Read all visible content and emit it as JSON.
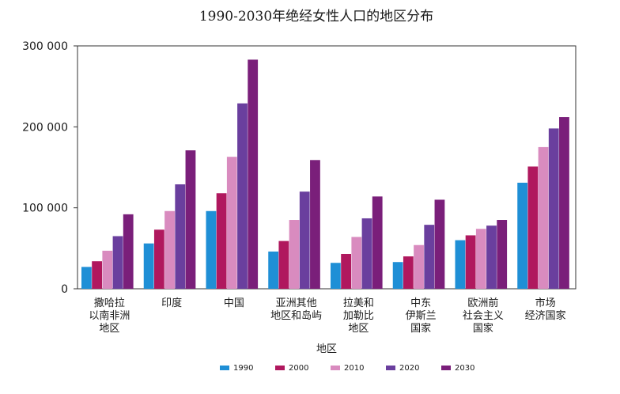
{
  "chart_data": {
    "type": "bar",
    "title": "1990-2030年绝经女性人口的地区分布",
    "xlabel": "地区",
    "ylabel": "",
    "ylim": [
      0,
      300000
    ],
    "yticks": [
      {
        "value": 0,
        "label": "0"
      },
      {
        "value": 100000,
        "label": "100 000"
      },
      {
        "value": 200000,
        "label": "200 000"
      },
      {
        "value": 300000,
        "label": "300 000"
      }
    ],
    "categories": [
      [
        "撒哈拉",
        "以南非洲",
        "地区"
      ],
      [
        "印度"
      ],
      [
        "中国"
      ],
      [
        "亚洲其他",
        "地区和岛屿"
      ],
      [
        "拉美和",
        "加勒比",
        "地区"
      ],
      [
        "中东",
        "伊斯兰",
        "国家"
      ],
      [
        "欧洲前",
        "社会主义",
        "国家"
      ],
      [
        "市场",
        "经济国家"
      ]
    ],
    "series": [
      {
        "name": "1990",
        "color": "#1f8fd6",
        "values": [
          27000,
          56000,
          96000,
          46000,
          32000,
          33000,
          60000,
          131000
        ]
      },
      {
        "name": "2000",
        "color": "#b0185e",
        "values": [
          34000,
          73000,
          118000,
          59000,
          43000,
          40000,
          66000,
          151000
        ]
      },
      {
        "name": "2010",
        "color": "#d98bbf",
        "values": [
          47000,
          96000,
          163000,
          85000,
          64000,
          54000,
          74000,
          175000
        ]
      },
      {
        "name": "2020",
        "color": "#6a3f9e",
        "values": [
          65000,
          129000,
          229000,
          120000,
          87000,
          79000,
          78000,
          198000
        ]
      },
      {
        "name": "2030",
        "color": "#7a1f7a",
        "values": [
          92000,
          171000,
          283000,
          159000,
          114000,
          110000,
          85000,
          212000
        ]
      }
    ],
    "grid": false,
    "legend": "bottom"
  }
}
